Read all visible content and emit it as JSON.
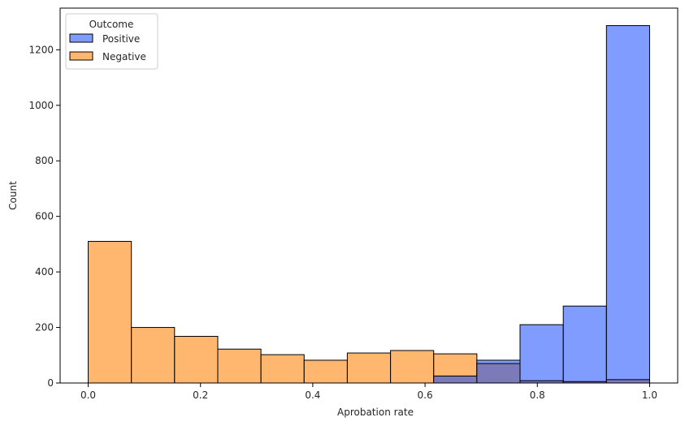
{
  "chart_data": {
    "type": "bar",
    "subtype": "histogram",
    "xlabel": "Aprobation rate",
    "ylabel": "Count",
    "xlim": [
      -0.05,
      1.05
    ],
    "ylim": [
      0,
      1350
    ],
    "x_ticks": [
      0.0,
      0.2,
      0.4,
      0.6,
      0.8,
      1.0
    ],
    "x_tick_labels": [
      "0.0",
      "0.2",
      "0.4",
      "0.6",
      "0.8",
      "1.0"
    ],
    "y_ticks": [
      0,
      200,
      400,
      600,
      800,
      1000,
      1200
    ],
    "y_tick_labels": [
      "0",
      "200",
      "400",
      "600",
      "800",
      "1000",
      "1200"
    ],
    "bin_edges": [
      0.0,
      0.0769,
      0.1538,
      0.2308,
      0.3077,
      0.3846,
      0.4615,
      0.5385,
      0.6154,
      0.6923,
      0.7692,
      0.8462,
      0.9231,
      1.0
    ],
    "legend": {
      "title": "Outcome",
      "position": "top-left"
    },
    "series": [
      {
        "name": "Positive",
        "color": "#4c72ff",
        "values": [
          0,
          0,
          0,
          0,
          0,
          0,
          0,
          0,
          25,
          82,
          210,
          277,
          1287
        ]
      },
      {
        "name": "Negative",
        "color": "#ff9f40",
        "values": [
          510,
          200,
          168,
          122,
          102,
          82,
          108,
          117,
          105,
          70,
          8,
          5,
          12
        ]
      }
    ],
    "overlap_color": "#7c7ab8",
    "grid": false
  }
}
